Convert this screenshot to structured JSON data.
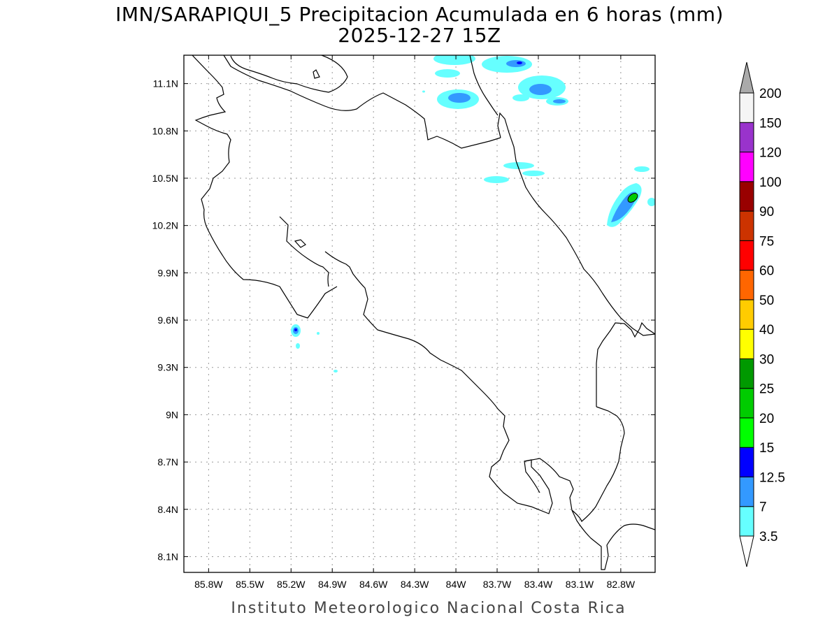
{
  "header": {
    "title_line1": "IMN/SARAPIQUI_5 Precipitacion Acumulada en 6 horas (mm)",
    "title_line2": "2025-12-27 15Z"
  },
  "footer": {
    "credit": "Instituto Meteorologico Nacional Costa Rica"
  },
  "map": {
    "lon_range": [
      -85.98,
      -82.55
    ],
    "lat_range": [
      8.0,
      11.28
    ],
    "lon_ticks": [
      {
        "value": -85.8,
        "label": "85.8W"
      },
      {
        "value": -85.5,
        "label": "85.5W"
      },
      {
        "value": -85.2,
        "label": "85.2W"
      },
      {
        "value": -84.9,
        "label": "84.9W"
      },
      {
        "value": -84.6,
        "label": "84.6W"
      },
      {
        "value": -84.3,
        "label": "84.3W"
      },
      {
        "value": -84.0,
        "label": "84W"
      },
      {
        "value": -83.7,
        "label": "83.7W"
      },
      {
        "value": -83.4,
        "label": "83.4W"
      },
      {
        "value": -83.1,
        "label": "83.1W"
      },
      {
        "value": -82.8,
        "label": "82.8W"
      }
    ],
    "lat_ticks": [
      {
        "value": 11.1,
        "label": "11.1N"
      },
      {
        "value": 10.8,
        "label": "10.8N"
      },
      {
        "value": 10.5,
        "label": "10.5N"
      },
      {
        "value": 10.2,
        "label": "10.2N"
      },
      {
        "value": 9.9,
        "label": "9.9N"
      },
      {
        "value": 9.6,
        "label": "9.6N"
      },
      {
        "value": 9.3,
        "label": "9.3N"
      },
      {
        "value": 9.0,
        "label": "9N"
      },
      {
        "value": 8.7,
        "label": "8.7N"
      },
      {
        "value": 8.4,
        "label": "8.4N"
      },
      {
        "value": 8.1,
        "label": "8.1N"
      }
    ],
    "gridlines": "dotted"
  },
  "colorbar": {
    "levels": [
      {
        "label": "3.5",
        "color": "#66ffff"
      },
      {
        "label": "7",
        "color": "#3399ff"
      },
      {
        "label": "12.5",
        "color": "#0000ff"
      },
      {
        "label": "15",
        "color": "#00ff00"
      },
      {
        "label": "20",
        "color": "#00cc00"
      },
      {
        "label": "25",
        "color": "#009900"
      },
      {
        "label": "30",
        "color": "#ffff00"
      },
      {
        "label": "40",
        "color": "#ffcc00"
      },
      {
        "label": "50",
        "color": "#ff6600"
      },
      {
        "label": "60",
        "color": "#ff0000"
      },
      {
        "label": "75",
        "color": "#cc3300"
      },
      {
        "label": "90",
        "color": "#990000"
      },
      {
        "label": "100",
        "color": "#ff00ff"
      },
      {
        "label": "120",
        "color": "#9933cc"
      },
      {
        "label": "150",
        "color": "#f5f5f5"
      },
      {
        "label": "200",
        "color": "#aaaaaa"
      }
    ],
    "below_color": "#ffffff",
    "above_color": "#aaaaaa"
  },
  "colors": {
    "light": "#66ffff",
    "medium": "#3399ff",
    "strong": "#0000ff",
    "heavy": "#00cc00",
    "coast": "#000000"
  }
}
